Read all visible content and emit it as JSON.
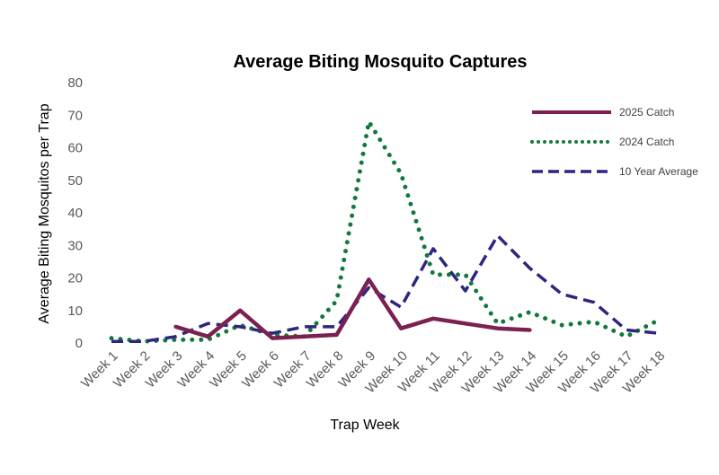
{
  "chart_data": {
    "type": "line",
    "title": "Average Biting Mosquito Captures",
    "xlabel": "Trap Week",
    "ylabel": "Average Biting Mosquitos per Trap",
    "ylim": [
      0,
      80
    ],
    "yticks": [
      "0",
      "10",
      "20",
      "30",
      "40",
      "50",
      "60",
      "70",
      "80"
    ],
    "grid": false,
    "legend_position": "top-right",
    "categories": [
      "Week 1",
      "Week 2",
      "Week 3",
      "Week 4",
      "Week 5",
      "Week 6",
      "Week 7",
      "Week 8",
      "Week 9",
      "Week 10",
      "Week 11",
      "Week 12",
      "Week 13",
      "Week 14",
      "Week 15",
      "Week 16",
      "Week 17",
      "Week 18"
    ],
    "series": [
      {
        "name": "2025 Catch",
        "color": "#7b2150",
        "style": "solid",
        "values": [
          null,
          null,
          5,
          2,
          10,
          1.5,
          2,
          2.5,
          19.5,
          4.5,
          7.5,
          6,
          4.5,
          4,
          null,
          null,
          null,
          null
        ]
      },
      {
        "name": "2024 Catch",
        "color": "#13793b",
        "style": "dotted",
        "values": [
          1.5,
          0.5,
          1,
          1,
          5.5,
          2.5,
          2,
          13,
          68,
          52,
          21,
          21,
          6,
          9.5,
          5.5,
          6.5,
          2,
          7
        ]
      },
      {
        "name": "10 Year Average",
        "color": "#2e2580",
        "style": "dashed",
        "values": [
          0.5,
          0.5,
          2,
          6,
          5,
          3,
          5,
          5,
          17,
          11,
          29,
          16,
          33,
          23,
          15,
          12.5,
          4,
          3
        ]
      }
    ]
  }
}
